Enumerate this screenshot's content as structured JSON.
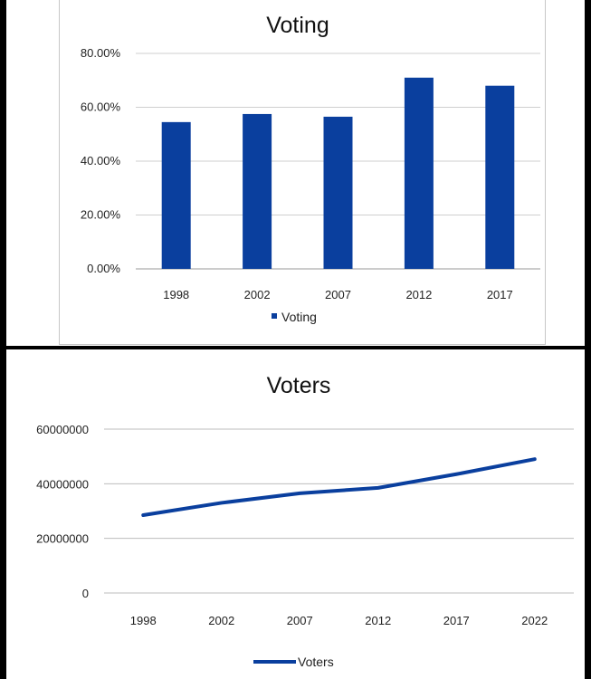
{
  "chart_data": [
    {
      "type": "bar",
      "title": "Voting",
      "categories": [
        "1998",
        "2002",
        "2007",
        "2012",
        "2017"
      ],
      "series": [
        {
          "name": "Voting",
          "values": [
            54.5,
            57.5,
            56.5,
            71.0,
            68.0
          ]
        }
      ],
      "yticks": [
        "0.00%",
        "20.00%",
        "40.00%",
        "60.00%",
        "80.00%"
      ],
      "ylim": [
        0,
        80
      ],
      "grid": true,
      "legend": "bottom",
      "color": "#0a3f9e"
    },
    {
      "type": "line",
      "title": "Voters",
      "categories": [
        "1998",
        "2002",
        "2007",
        "2012",
        "2017",
        "2022"
      ],
      "series": [
        {
          "name": "Voters",
          "values": [
            28500000,
            33000000,
            36500000,
            38500000,
            43500000,
            49000000
          ]
        }
      ],
      "yticks": [
        "0",
        "20000000",
        "40000000",
        "60000000"
      ],
      "ylim": [
        0,
        60000000
      ],
      "grid": true,
      "legend": "bottom",
      "color": "#0a3f9e"
    }
  ]
}
